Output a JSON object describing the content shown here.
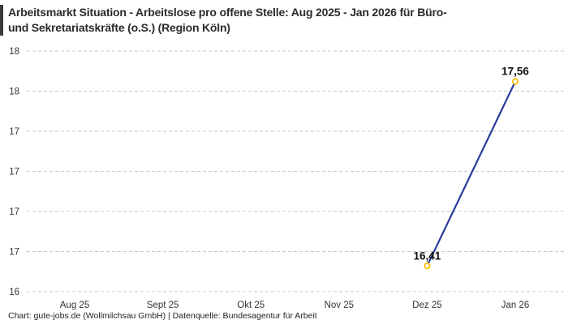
{
  "header": {
    "title_lines": [
      "Arbeitsmarkt Situation - Arbeitslose pro offene Stelle: Aug 2025 - Jan 2026 für Büro-",
      "und Sekretariatskräfte (o.S.) (Region Köln)"
    ]
  },
  "footer": {
    "attribution": "Chart: gute-jobs.de (Wollmilchsau GmbH) | Datenquelle: Bundesagentur für Arbeit"
  },
  "chart_data": {
    "type": "line",
    "title": "Arbeitsmarkt Situation - Arbeitslose pro offene Stelle: Aug 2025 - Jan 2026 für Büro- und Sekretariatskräfte (o.S.) (Region Köln)",
    "xlabel": "",
    "ylabel": "",
    "categories": [
      "Aug 25",
      "Sept 25",
      "Okt 25",
      "Nov 25",
      "Dez 25",
      "Jan 26"
    ],
    "series": [
      {
        "name": "Arbeitslose pro offene Stelle",
        "values": [
          null,
          null,
          null,
          null,
          16.41,
          17.56
        ],
        "point_labels": [
          null,
          null,
          null,
          null,
          "16,41",
          "17,56"
        ],
        "line_color": "#2a3b9d",
        "marker_color": "#ffc107"
      }
    ],
    "ylim": [
      16.25,
      17.75
    ],
    "ytick_values": [
      17.75,
      17.5,
      17.25,
      17.0,
      16.75,
      16.5,
      16.25
    ],
    "ytick_labels": [
      "18",
      "18",
      "17",
      "17",
      "17",
      "17",
      "16"
    ],
    "grid": "horizontal-dashed",
    "legend_position": "none",
    "colors": {
      "grid": "#c8c8c8",
      "tick_text": "#333333",
      "point_label_text": "#111111",
      "background": "#ffffff"
    }
  }
}
